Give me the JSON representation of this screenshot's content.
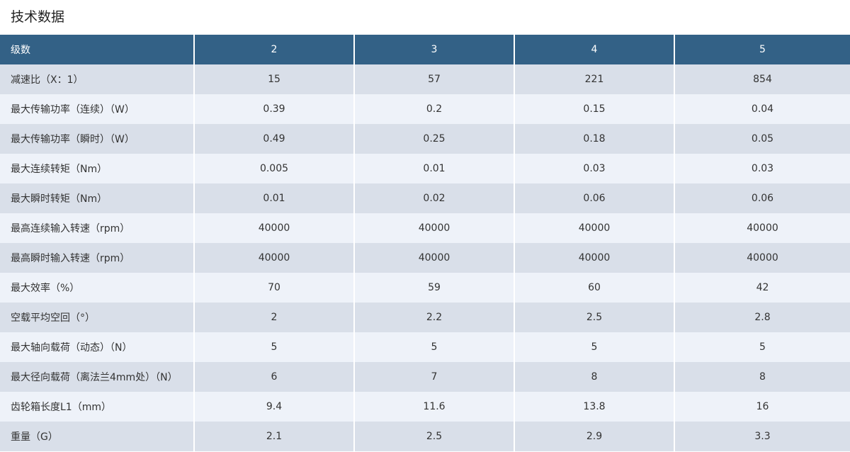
{
  "title": "技术数据",
  "colors": {
    "header_bg": "#336186",
    "row_odd": "#d9dfe9",
    "row_even": "#eef2f9"
  },
  "table": {
    "headers": [
      "级数",
      "2",
      "3",
      "4",
      "5"
    ],
    "rows": [
      [
        "减速比（X：1）",
        "15",
        "57",
        "221",
        "854"
      ],
      [
        "最大传输功率（连续）（W）",
        "0.39",
        "0.2",
        "0.15",
        "0.04"
      ],
      [
        "最大传输功率（瞬时）（W）",
        "0.49",
        "0.25",
        "0.18",
        "0.05"
      ],
      [
        "最大连续转矩（Nm）",
        "0.005",
        "0.01",
        "0.03",
        "0.03"
      ],
      [
        "最大瞬时转矩（Nm）",
        "0.01",
        "0.02",
        "0.06",
        "0.06"
      ],
      [
        "最高连续输入转速（rpm）",
        "40000",
        "40000",
        "40000",
        "40000"
      ],
      [
        "最高瞬时输入转速（rpm）",
        "40000",
        "40000",
        "40000",
        "40000"
      ],
      [
        "最大效率（%）",
        "70",
        "59",
        "60",
        "42"
      ],
      [
        "空载平均空回（°）",
        "2",
        "2.2",
        "2.5",
        "2.8"
      ],
      [
        "最大轴向载荷（动态）（N）",
        "5",
        "5",
        "5",
        "5"
      ],
      [
        "最大径向载荷（离法兰4mm处）（N）",
        "6",
        "7",
        "8",
        "8"
      ],
      [
        "齿轮箱长度L1（mm）",
        "9.4",
        "11.6",
        "13.8",
        "16"
      ],
      [
        "重量（G）",
        "2.1",
        "2.5",
        "2.9",
        "3.3"
      ]
    ]
  }
}
